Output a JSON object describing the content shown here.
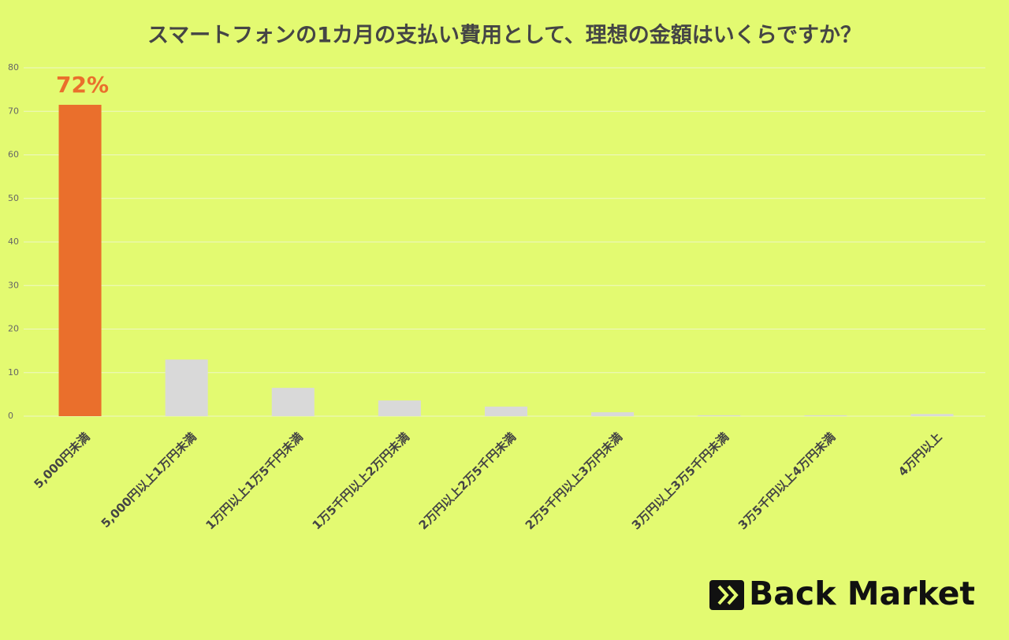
{
  "chart_data": {
    "type": "bar",
    "title": "スマートフォンの1カ月の支払い費用として、理想の金額はいくらですか？",
    "categories": [
      "5,000円未満",
      "5,000円以上1万円未満",
      "1万円以上1万5千円未満",
      "1万5千円以上2万円未満",
      "2万円以上2万5千円未満",
      "2万5千円以上3万円未満",
      "3万円以上3万5千円未満",
      "3万5千円以上4万円未満",
      "4万円以上"
    ],
    "values": [
      71.5,
      13.0,
      6.5,
      3.6,
      2.2,
      0.9,
      0.2,
      0.2,
      0.5
    ],
    "value_labels": [
      "72%",
      null,
      null,
      null,
      null,
      null,
      null,
      null,
      null
    ],
    "colors": [
      "#ea6f2c",
      "#d9d9d9",
      "#d9d9d9",
      "#d9d9d9",
      "#d9d9d9",
      "#d9d9d9",
      "#d9d9d9",
      "#d9d9d9",
      "#d9d9d9"
    ],
    "ylim": [
      0,
      80
    ],
    "yticks": [
      0,
      10,
      20,
      30,
      40,
      50,
      60,
      70,
      80
    ],
    "grid": true,
    "brand": "Back Market"
  }
}
